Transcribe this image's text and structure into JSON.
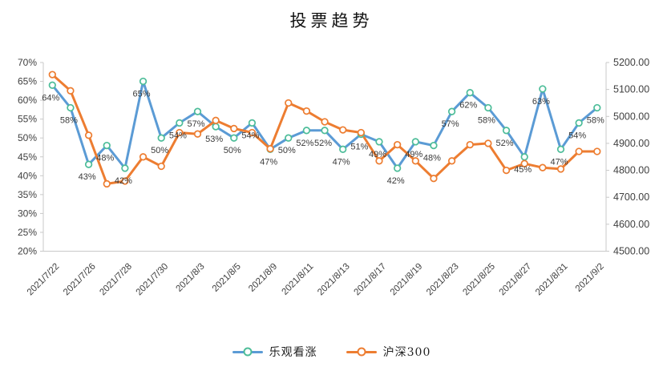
{
  "title": "投票趋势",
  "colors": {
    "axis_line": "#C9C9C9",
    "text": "#404040",
    "data_label": "#3a3a3a",
    "series_blue": "#5B9BD5",
    "series_blue_marker": "#4DBD99",
    "series_orange": "#ED7D31",
    "series_orange_marker": "#ED7D31",
    "background": "#FFFFFF"
  },
  "legend": {
    "items": [
      {
        "label": "乐观看涨"
      },
      {
        "label": "沪深300"
      }
    ]
  },
  "chart_data": {
    "type": "line",
    "title": "投票趋势",
    "grid": false,
    "legend_position": "bottom",
    "x_tick_labels": [
      "2021/7/22",
      "2021/7/26",
      "2021/7/28",
      "2021/7/30",
      "2021/8/3",
      "2021/8/5",
      "2021/8/9",
      "2021/8/11",
      "2021/8/13",
      "2021/8/17",
      "2021/8/19",
      "2021/8/23",
      "2021/8/25",
      "2021/8/27",
      "2021/8/31",
      "2021/9/2"
    ],
    "x_label_every_n_points": 2,
    "n_points": 31,
    "left_axis": {
      "unit": "%",
      "min": 20,
      "max": 70,
      "ticks": [
        "70%",
        "65%",
        "60%",
        "55%",
        "50%",
        "45%",
        "40%",
        "35%",
        "30%",
        "25%",
        "20%"
      ]
    },
    "right_axis": {
      "min": 4500,
      "max": 5200,
      "ticks": [
        "5200.00",
        "5100.00",
        "5000.00",
        "4900.00",
        "4800.00",
        "4700.00",
        "4600.00",
        "4500.00"
      ]
    },
    "series": [
      {
        "name": "乐观看涨",
        "axis": "left",
        "color": "#5B9BD5",
        "marker_color": "#4DBD99",
        "data_labels": true,
        "values": [
          64,
          58,
          43,
          48,
          42,
          65,
          50,
          54,
          57,
          53,
          50,
          54,
          47,
          50,
          52,
          52,
          47,
          51,
          49,
          42,
          49,
          48,
          57,
          62,
          58,
          52,
          45,
          63,
          47,
          54,
          58
        ]
      },
      {
        "name": "沪深300",
        "axis": "right",
        "color": "#ED7D31",
        "marker_color": "#ED7D31",
        "data_labels": false,
        "values": [
          5155,
          5095,
          4930,
          4750,
          4760,
          4850,
          4815,
          4940,
          4935,
          4985,
          4955,
          4940,
          4880,
          5050,
          5020,
          4980,
          4950,
          4940,
          4835,
          4895,
          4835,
          4770,
          4835,
          4895,
          4900,
          4800,
          4825,
          4810,
          4805,
          4870,
          4870
        ]
      }
    ]
  }
}
